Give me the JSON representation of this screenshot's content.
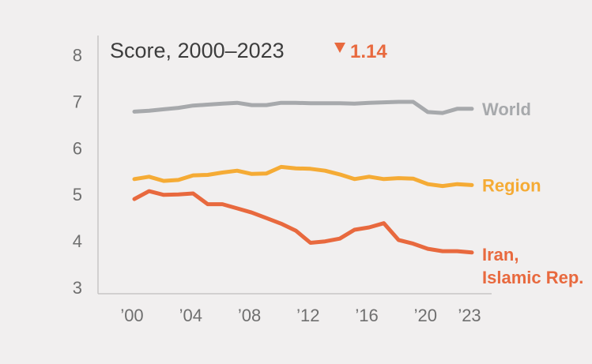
{
  "chart_data": {
    "type": "line",
    "title": "Score, 2000–2023",
    "change": {
      "direction_icon": "down-triangle-icon",
      "value": "1.14",
      "color": "#e8693e"
    },
    "xlabel": "",
    "ylabel": "",
    "ylim": [
      3,
      8.5
    ],
    "xlim": [
      2000,
      2023
    ],
    "yticks": [
      3,
      4,
      5,
      6,
      7,
      8
    ],
    "xticks": [
      {
        "value": 2000,
        "label": "’00"
      },
      {
        "value": 2004,
        "label": "’04"
      },
      {
        "value": 2008,
        "label": "’08"
      },
      {
        "value": 2012,
        "label": "’12"
      },
      {
        "value": 2016,
        "label": "’16"
      },
      {
        "value": 2020,
        "label": "’20"
      },
      {
        "value": 2023,
        "label": "’23"
      }
    ],
    "grid": false,
    "x": [
      2000,
      2001,
      2002,
      2003,
      2004,
      2005,
      2006,
      2007,
      2008,
      2009,
      2010,
      2011,
      2012,
      2013,
      2014,
      2015,
      2016,
      2017,
      2018,
      2019,
      2020,
      2021,
      2022,
      2023
    ],
    "series": [
      {
        "name": "World",
        "label_lines": [
          "World"
        ],
        "color": "#a7a9ac",
        "values": [
          6.78,
          6.8,
          6.83,
          6.86,
          6.91,
          6.93,
          6.95,
          6.97,
          6.92,
          6.92,
          6.97,
          6.97,
          6.96,
          6.96,
          6.96,
          6.95,
          6.97,
          6.98,
          6.99,
          6.99,
          6.77,
          6.75,
          6.84,
          6.84
        ]
      },
      {
        "name": "Region",
        "label_lines": [
          "Region"
        ],
        "color": "#f5ab35",
        "values": [
          5.33,
          5.38,
          5.29,
          5.31,
          5.41,
          5.42,
          5.47,
          5.51,
          5.44,
          5.45,
          5.59,
          5.56,
          5.55,
          5.51,
          5.43,
          5.33,
          5.38,
          5.33,
          5.35,
          5.34,
          5.22,
          5.18,
          5.22,
          5.2
        ]
      },
      {
        "name": "Iran, Islamic Rep.",
        "label_lines": [
          "Iran,",
          "Islamic Rep."
        ],
        "color": "#e8693e",
        "values": [
          4.9,
          5.07,
          4.99,
          5.0,
          5.02,
          4.79,
          4.79,
          4.7,
          4.61,
          4.49,
          4.37,
          4.22,
          3.96,
          3.99,
          4.05,
          4.24,
          4.29,
          4.38,
          4.02,
          3.94,
          3.83,
          3.78,
          3.78,
          3.75
        ]
      }
    ]
  }
}
